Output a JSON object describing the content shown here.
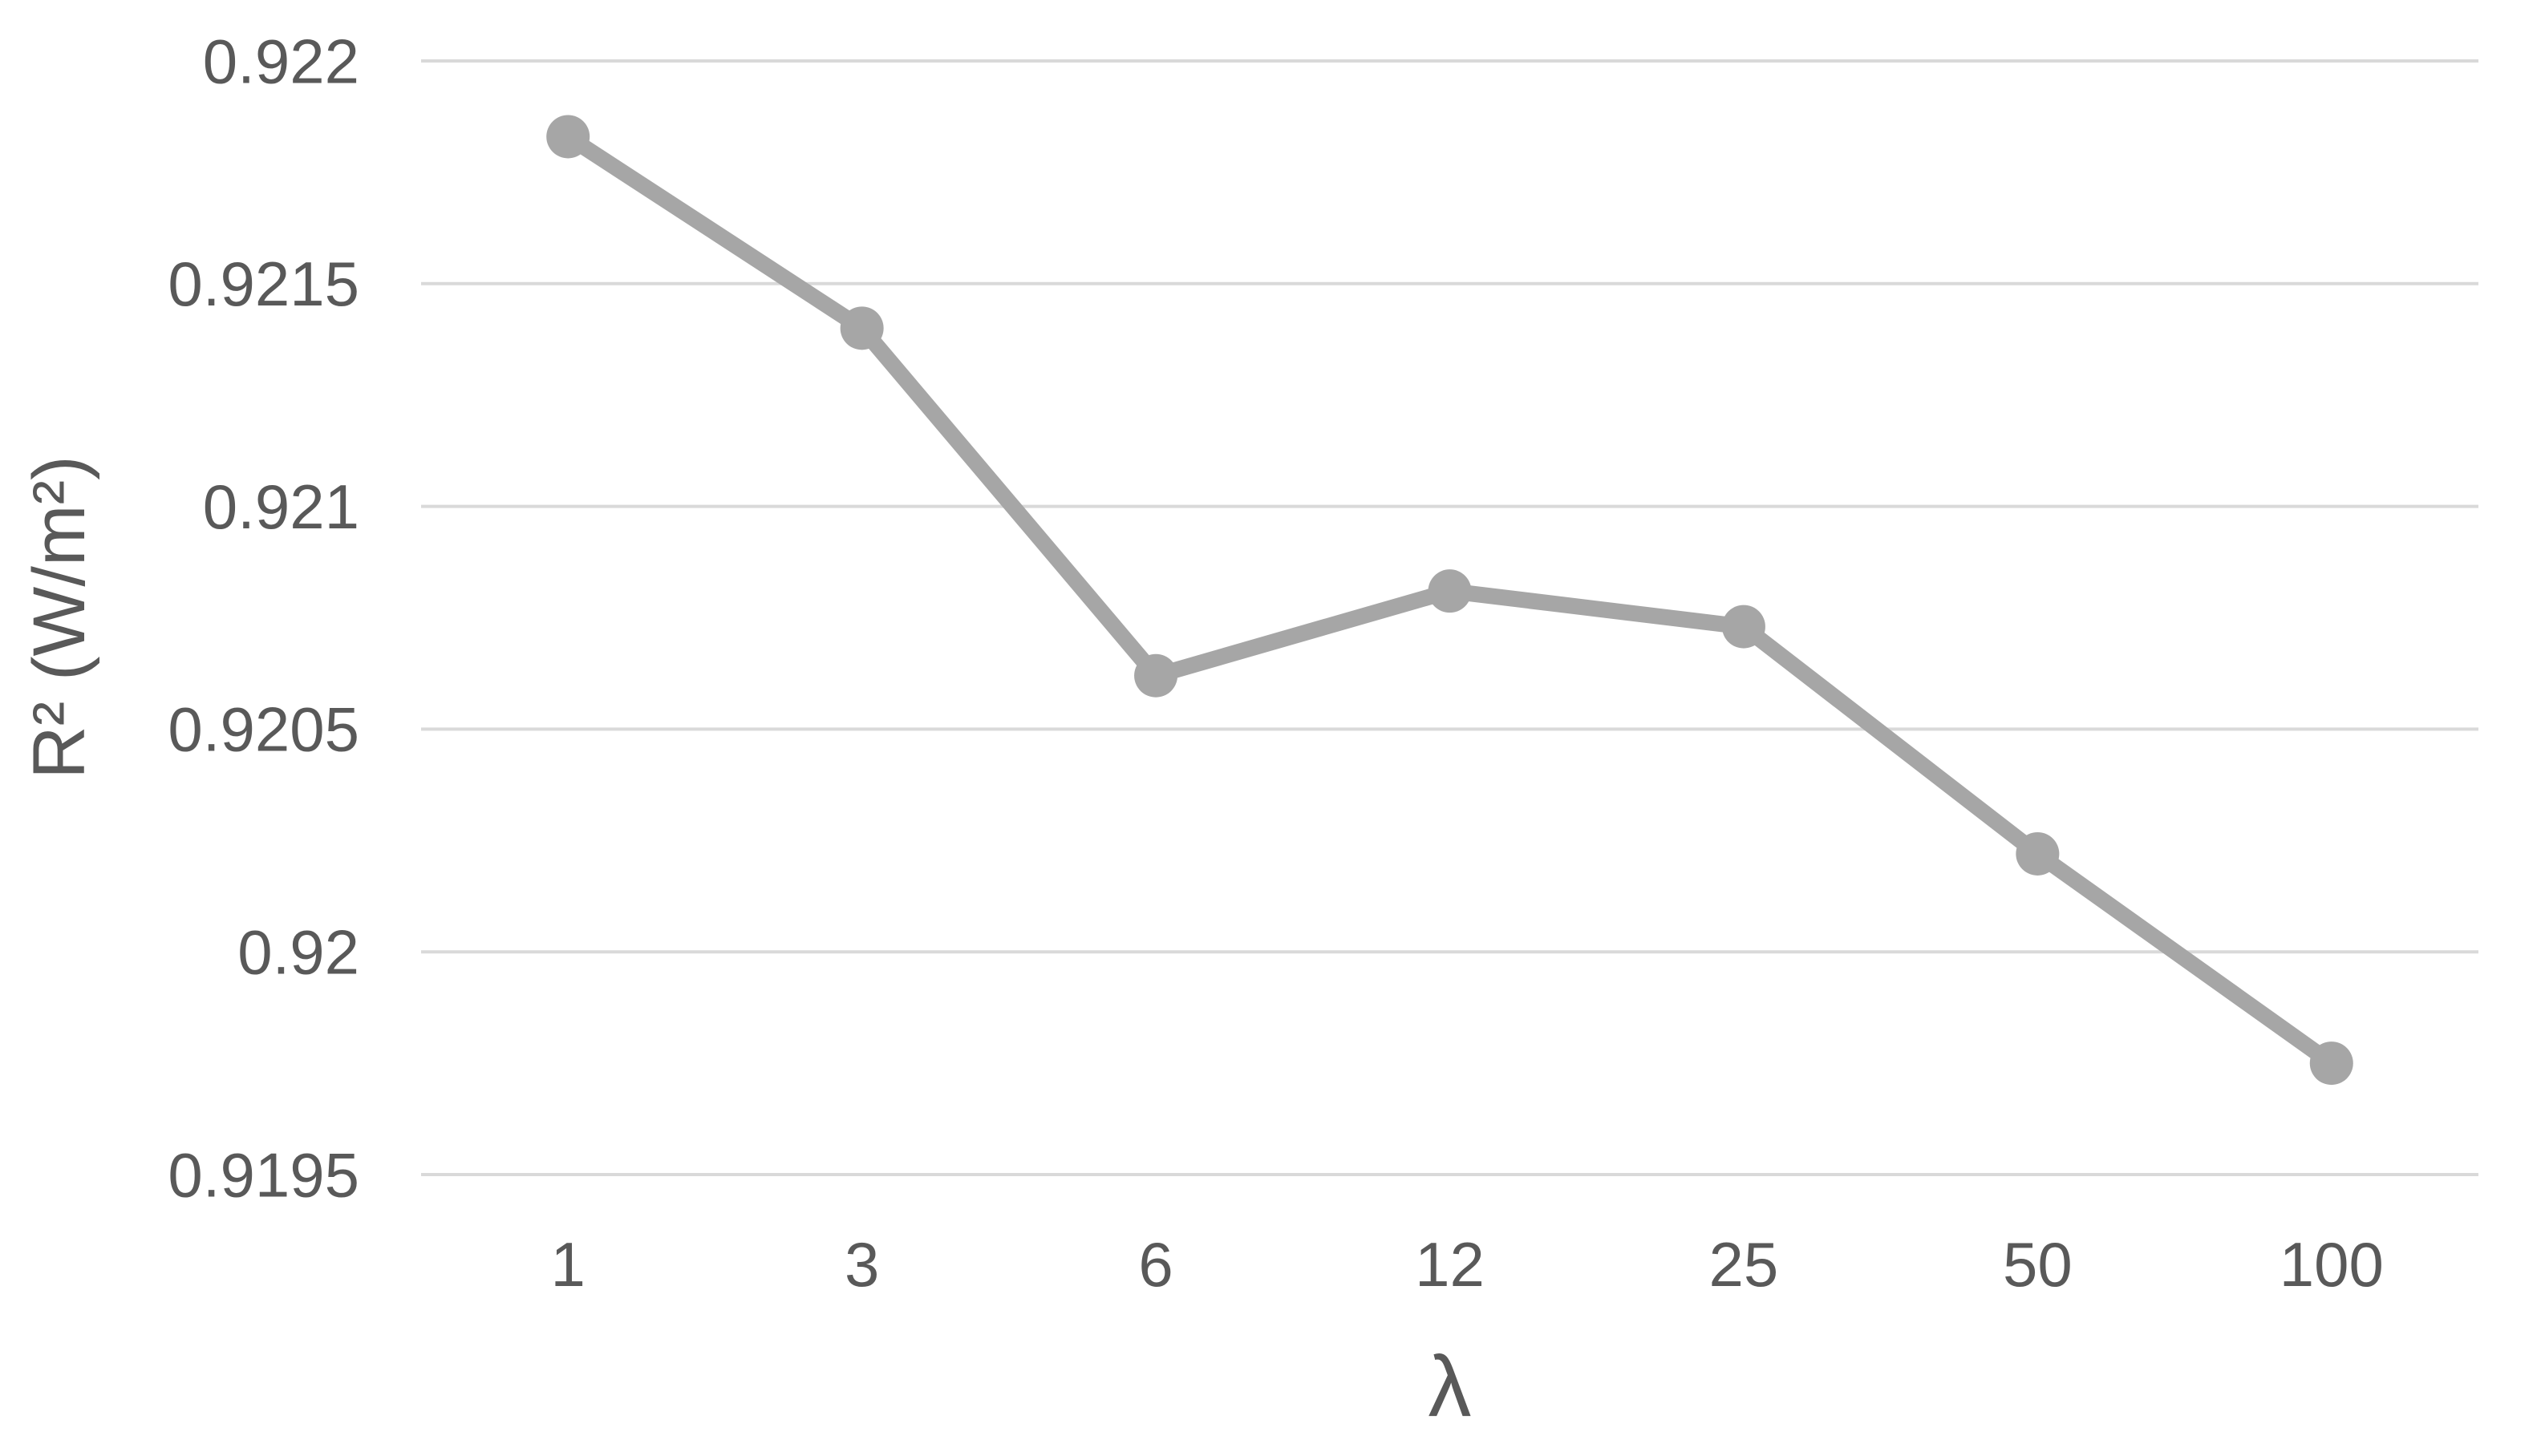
{
  "chart_data": {
    "type": "line",
    "title": "",
    "xlabel": "λ",
    "ylabel": "R² (W/m²)",
    "categories": [
      "1",
      "3",
      "6",
      "12",
      "25",
      "50",
      "100"
    ],
    "values": [
      0.92183,
      0.9214,
      0.92062,
      0.92081,
      0.92073,
      0.92022,
      0.91975
    ],
    "ylim": [
      0.9195,
      0.922
    ],
    "yticks": [
      {
        "label": "0.922",
        "value": 0.922
      },
      {
        "label": "0.9215",
        "value": 0.9215
      },
      {
        "label": "0.921",
        "value": 0.921
      },
      {
        "label": "0.9205",
        "value": 0.9205
      },
      {
        "label": "0.92",
        "value": 0.92
      },
      {
        "label": "0.9195",
        "value": 0.9195
      }
    ],
    "grid": "horizontal",
    "legend": "none",
    "marker": "circle",
    "colors": {
      "line": "#a6a6a6",
      "marker": "#a6a6a6",
      "gridline": "#d9d9d9",
      "tick_text": "#595959",
      "axis_title_text": "#595959",
      "background": "#ffffff"
    }
  }
}
